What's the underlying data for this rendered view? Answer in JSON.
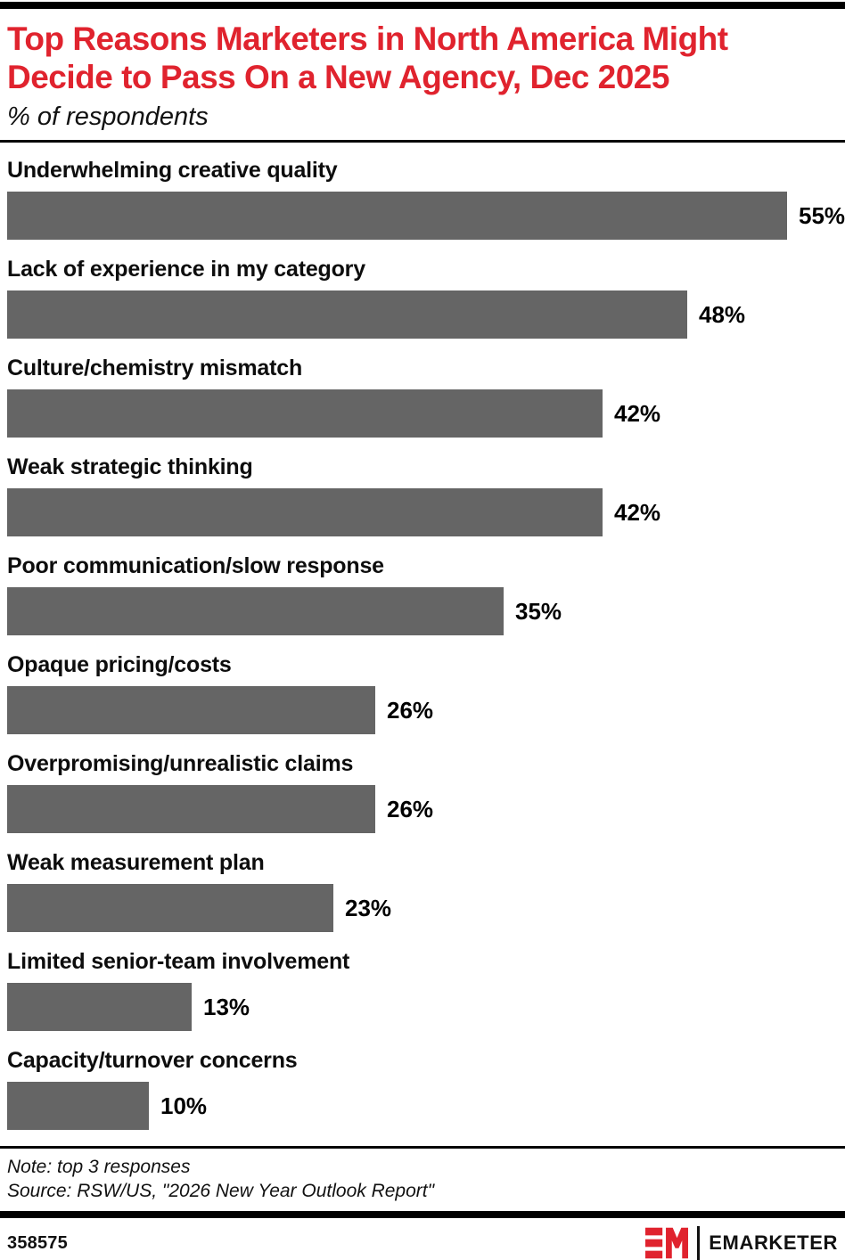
{
  "header": {
    "title_line1": "Top Reasons Marketers in North America Might",
    "title_line2": "Decide to Pass On a New Agency, Dec 2025",
    "subtitle": "% of respondents"
  },
  "chart_data": {
    "type": "bar",
    "orientation": "horizontal",
    "title": "Top Reasons Marketers in North America Might Decide to Pass On a New Agency, Dec 2025",
    "subtitle": "% of respondents",
    "categories": [
      "Underwhelming creative quality",
      "Lack of experience in my category",
      "Culture/chemistry mismatch",
      "Weak strategic thinking",
      "Poor communication/slow response",
      "Opaque pricing/costs",
      "Overpromising/unrealistic claims",
      "Weak measurement plan",
      "Limited senior-team involvement",
      "Capacity/turnover concerns"
    ],
    "values": [
      55,
      48,
      42,
      42,
      35,
      26,
      26,
      23,
      13,
      10
    ],
    "value_suffix": "%",
    "xlim": [
      0,
      60
    ],
    "grid": false,
    "legend": false,
    "bar_color": "#656565",
    "data_labels": [
      "55%",
      "48%",
      "42%",
      "42%",
      "35%",
      "26%",
      "26%",
      "23%",
      "13%",
      "10%"
    ]
  },
  "footer": {
    "note": "Note: top 3 responses",
    "source": "Source: RSW/US, \"2026 New Year Outlook Report\"",
    "chart_id": "358575",
    "brand": "EMARKETER"
  },
  "colors": {
    "accent_red": "#e0232e",
    "bar_gray": "#656565",
    "rule_black": "#000000"
  }
}
